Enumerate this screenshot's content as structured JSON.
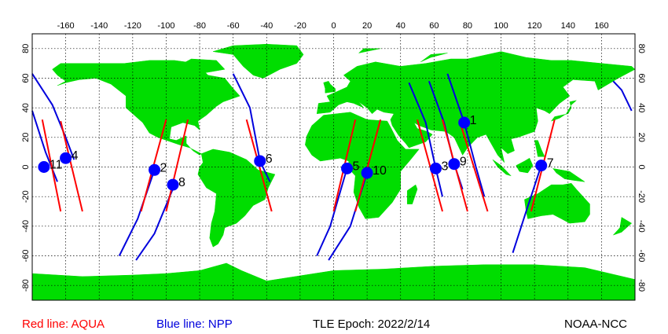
{
  "map": {
    "x_ticks": [
      "-160",
      "-140",
      "-120",
      "-100",
      "-80",
      "-60",
      "-40",
      "-20",
      "0",
      "20",
      "40",
      "60",
      "80",
      "100",
      "120",
      "140",
      "160"
    ],
    "y_ticks": [
      "80",
      "60",
      "40",
      "20",
      "0",
      "-20",
      "-40",
      "-60",
      "-80"
    ],
    "colors": {
      "land": "#00dd00",
      "ocean": "#ffffff",
      "aqua_track": "#ff0000",
      "npp_track": "#0000dd",
      "marker": "#0000ff",
      "grid": "#000000"
    }
  },
  "legend": {
    "aqua_label": "Red line: AQUA",
    "npp_label": "Blue line: NPP",
    "epoch_label": "TLE Epoch: 2022/2/14",
    "credit": "NOAA-NCC"
  },
  "markers": [
    {
      "label": "1",
      "lon": 78,
      "lat": 30
    },
    {
      "label": "2",
      "lon": -107,
      "lat": -2
    },
    {
      "label": "3",
      "lon": 61,
      "lat": -1
    },
    {
      "label": "4",
      "lon": -160,
      "lat": 6
    },
    {
      "label": "5",
      "lon": 8,
      "lat": -1
    },
    {
      "label": "6",
      "lon": -44,
      "lat": 4
    },
    {
      "label": "7",
      "lon": 124,
      "lat": 1
    },
    {
      "label": "8",
      "lon": -96,
      "lat": -12
    },
    {
      "label": "9",
      "lon": 72,
      "lat": 2
    },
    {
      "label": "10",
      "lon": 20,
      "lat": -4
    },
    {
      "label": "11",
      "lon": -173,
      "lat": 0
    }
  ],
  "tracks": {
    "aqua": [
      [
        [
          -174,
          32
        ],
        [
          -163,
          -30
        ]
      ],
      [
        [
          -163,
          31
        ],
        [
          -150,
          -30
        ]
      ],
      [
        [
          -100,
          32
        ],
        [
          -115,
          -30
        ]
      ],
      [
        [
          -87,
          32
        ],
        [
          -100,
          -30
        ]
      ],
      [
        [
          -52,
          32
        ],
        [
          -37,
          -30
        ]
      ],
      [
        [
          13,
          32
        ],
        [
          0,
          -30
        ]
      ],
      [
        [
          28,
          32
        ],
        [
          13,
          -30
        ]
      ],
      [
        [
          50,
          32
        ],
        [
          65,
          -30
        ]
      ],
      [
        [
          65,
          32
        ],
        [
          80,
          -30
        ]
      ],
      [
        [
          75,
          32
        ],
        [
          92,
          -30
        ]
      ],
      [
        [
          132,
          32
        ],
        [
          118,
          -30
        ]
      ]
    ],
    "npp": [
      [
        [
          -180,
          38
        ],
        [
          -172,
          10
        ],
        [
          -165,
          -10
        ]
      ],
      [
        [
          -180,
          63
        ],
        [
          -168,
          42
        ],
        [
          -160,
          20
        ],
        [
          -155,
          5
        ]
      ],
      [
        [
          -95,
          -12
        ],
        [
          -107,
          -45
        ],
        [
          -118,
          -63
        ]
      ],
      [
        [
          -107,
          -2
        ],
        [
          -117,
          -35
        ],
        [
          -128,
          -60
        ]
      ],
      [
        [
          -60,
          63
        ],
        [
          -50,
          40
        ],
        [
          -44,
          4
        ],
        [
          -38,
          -10
        ]
      ],
      [
        [
          8,
          -1
        ],
        [
          -2,
          -40
        ],
        [
          -10,
          -60
        ]
      ],
      [
        [
          20,
          -4
        ],
        [
          10,
          -40
        ],
        [
          -3,
          -63
        ]
      ],
      [
        [
          45,
          57
        ],
        [
          55,
          30
        ],
        [
          61,
          -1
        ],
        [
          65,
          -20
        ]
      ],
      [
        [
          57,
          58
        ],
        [
          66,
          30
        ],
        [
          72,
          2
        ],
        [
          77,
          -15
        ]
      ],
      [
        [
          68,
          63
        ],
        [
          78,
          30
        ],
        [
          85,
          0
        ],
        [
          90,
          -20
        ]
      ],
      [
        [
          124,
          1
        ],
        [
          115,
          -30
        ],
        [
          107,
          -58
        ]
      ],
      [
        [
          178,
          38
        ],
        [
          172,
          52
        ],
        [
          167,
          58
        ]
      ]
    ]
  }
}
